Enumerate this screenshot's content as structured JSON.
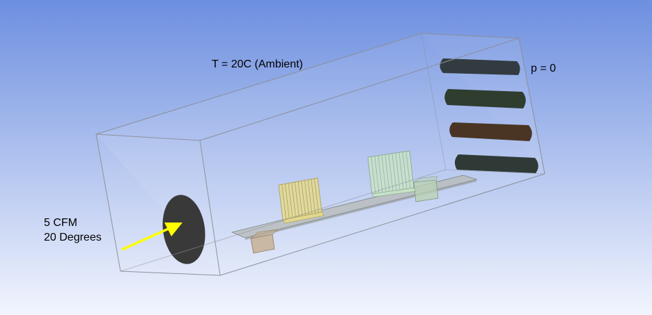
{
  "colors": {
    "background_top": "#6d8fe0",
    "background_bottom": "#f2f5fd",
    "enclosure_edge": "#8a8f98",
    "inlet": "#2d2d2d",
    "inlet_arrow": "#ffff00",
    "vent_1": "#323c40",
    "vent_2": "#2f3d2f",
    "vent_3": "#4a3524",
    "vent_4": "#2f3a36",
    "board": "#b5b9b5",
    "heatsink_1": "#e6d98a",
    "heatsink_2": "#c9e6c6",
    "chip_1": "#c6ae8e",
    "chip_2": "#b9d1b3"
  },
  "labels": {
    "ambient_temperature": "T = 20C (Ambient)",
    "outlet_pressure": "p = 0",
    "inlet_flow": "5 CFM",
    "inlet_angle": "20 Degrees"
  }
}
